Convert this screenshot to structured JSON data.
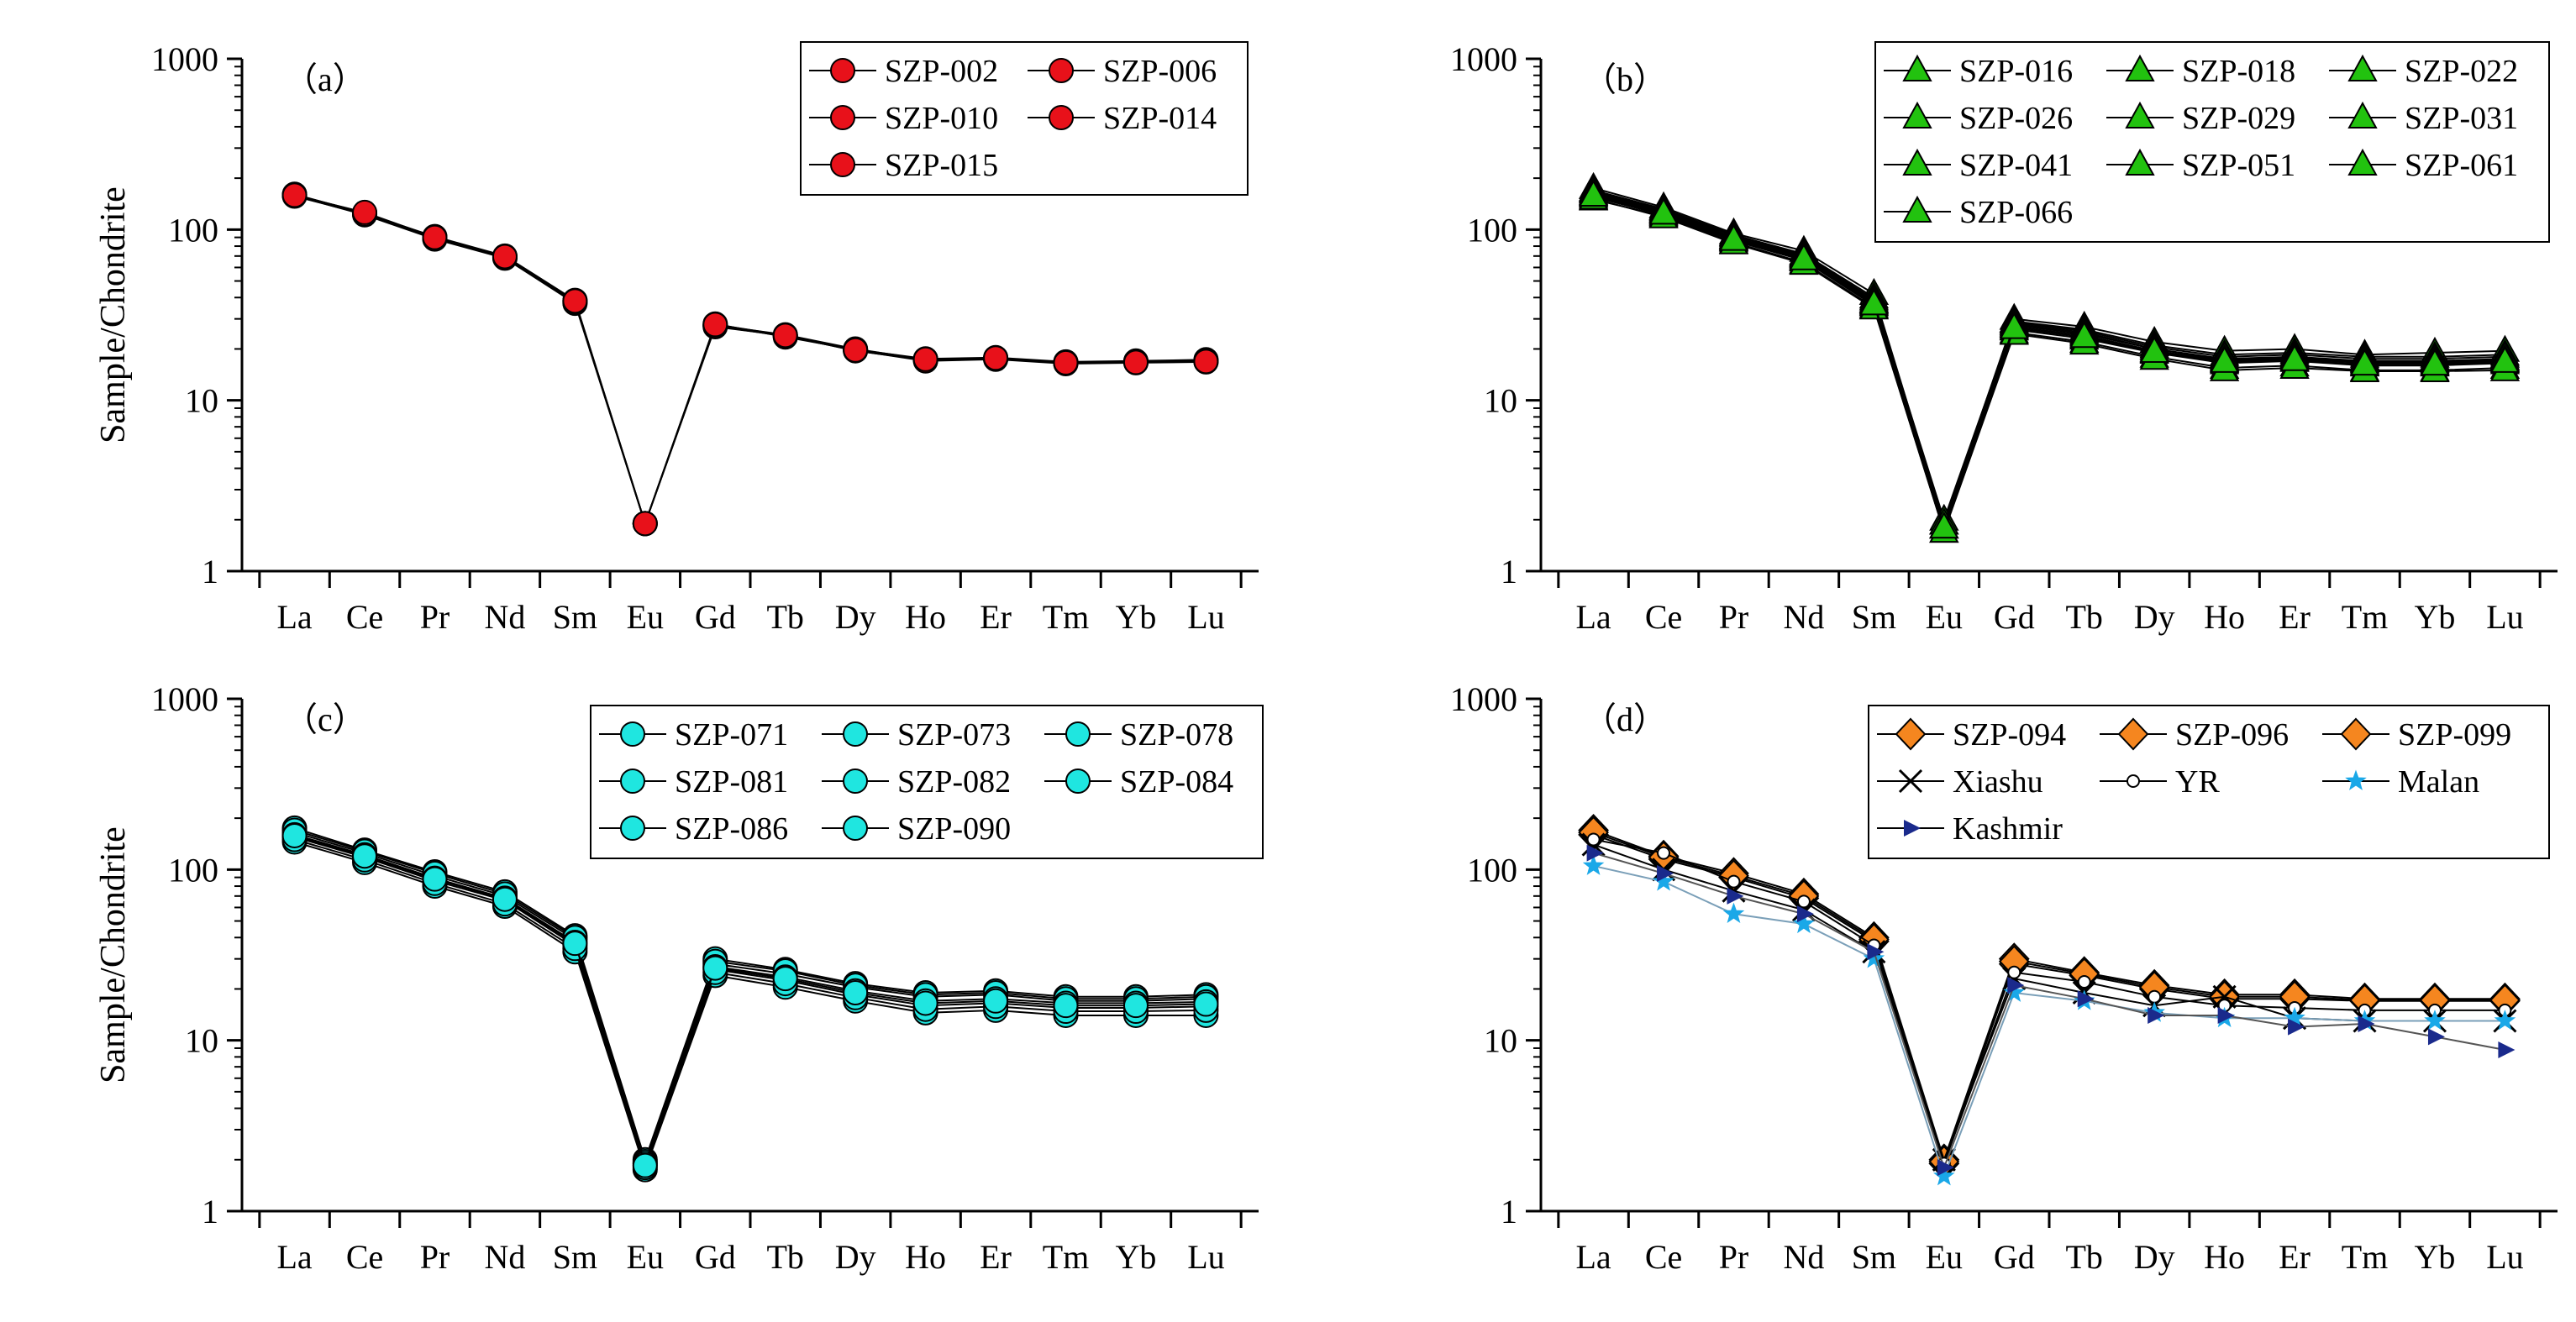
{
  "figure": {
    "ylabel": "Sample/Chondrite",
    "categories": [
      "La",
      "Ce",
      "Pr",
      "Nd",
      "Sm",
      "Eu",
      "Gd",
      "Tb",
      "Dy",
      "Ho",
      "Er",
      "Tm",
      "Yb",
      "Lu"
    ],
    "ylim": [
      1,
      1000
    ],
    "yticks": [
      "1",
      "10",
      "100",
      "1000"
    ]
  },
  "chart_data": [
    {
      "type": "line",
      "panel_label": "（a）",
      "scale": "log",
      "xlabel": "",
      "ylabel": "Sample/Chondrite",
      "ylim": [
        1,
        1000
      ],
      "categories": [
        "La",
        "Ce",
        "Pr",
        "Nd",
        "Sm",
        "Eu",
        "Gd",
        "Tb",
        "Dy",
        "Ho",
        "Er",
        "Tm",
        "Yb",
        "Lu"
      ],
      "legend_columns": 2,
      "series": [
        {
          "name": "SZP-002",
          "marker": "circle",
          "color": "#e8111a",
          "values": [
            160,
            125,
            90,
            69,
            38,
            1.9,
            27,
            24,
            19.5,
            17.2,
            17.5,
            16.5,
            16.8,
            17.0
          ]
        },
        {
          "name": "SZP-006",
          "marker": "circle",
          "color": "#e8111a",
          "values": [
            158,
            122,
            88,
            68,
            37,
            1.9,
            28,
            23.5,
            19.8,
            17.5,
            17.8,
            16.8,
            17.0,
            17.3
          ]
        },
        {
          "name": "SZP-010",
          "marker": "circle",
          "color": "#e8111a",
          "values": [
            161,
            124,
            91,
            70,
            38.5,
            1.9,
            27.5,
            24.2,
            20.0,
            17.3,
            17.6,
            16.7,
            16.9,
            17.1
          ]
        },
        {
          "name": "SZP-014",
          "marker": "circle",
          "color": "#e8111a",
          "values": [
            157,
            123,
            89,
            68.5,
            37.5,
            1.9,
            27.2,
            23.8,
            19.6,
            17.0,
            17.4,
            16.4,
            16.6,
            16.8
          ]
        },
        {
          "name": "SZP-015",
          "marker": "circle",
          "color": "#e8111a",
          "values": [
            159,
            126,
            90,
            69.5,
            38.2,
            1.9,
            27.8,
            24.0,
            19.7,
            17.4,
            17.7,
            16.6,
            16.7,
            16.9
          ]
        }
      ]
    },
    {
      "type": "line",
      "panel_label": "（b）",
      "scale": "log",
      "xlabel": "",
      "ylabel": "",
      "ylim": [
        1,
        1000
      ],
      "categories": [
        "La",
        "Ce",
        "Pr",
        "Nd",
        "Sm",
        "Eu",
        "Gd",
        "Tb",
        "Dy",
        "Ho",
        "Er",
        "Tm",
        "Yb",
        "Lu"
      ],
      "legend_columns": 3,
      "series": [
        {
          "name": "SZP-016",
          "marker": "triangle",
          "color": "#22c20f",
          "values": [
            175,
            135,
            95,
            75,
            42,
            1.9,
            30,
            27,
            22,
            19.5,
            20,
            18.5,
            19,
            19.5
          ]
        },
        {
          "name": "SZP-018",
          "marker": "triangle",
          "color": "#22c20f",
          "values": [
            150,
            120,
            84,
            64,
            35,
            1.7,
            25,
            22,
            18,
            15.5,
            16,
            15,
            15,
            15.5
          ]
        },
        {
          "name": "SZP-022",
          "marker": "triangle",
          "color": "#22c20f",
          "values": [
            165,
            128,
            90,
            70,
            38,
            1.8,
            28,
            25,
            20,
            17.5,
            18,
            17,
            17,
            17.5
          ]
        },
        {
          "name": "SZP-026",
          "marker": "triangle",
          "color": "#22c20f",
          "values": [
            160,
            125,
            88,
            68,
            37,
            1.9,
            27,
            24,
            19.5,
            17,
            17.5,
            16.5,
            16.5,
            17
          ]
        },
        {
          "name": "SZP-029",
          "marker": "triangle",
          "color": "#22c20f",
          "values": [
            170,
            132,
            93,
            72,
            40,
            2.0,
            29,
            26,
            21,
            18.5,
            19,
            18,
            18,
            18.5
          ]
        },
        {
          "name": "SZP-031",
          "marker": "triangle",
          "color": "#22c20f",
          "values": [
            155,
            122,
            86,
            66,
            36,
            1.8,
            26,
            23,
            19,
            16.5,
            17,
            16,
            16,
            16.5
          ]
        },
        {
          "name": "SZP-041",
          "marker": "triangle",
          "color": "#22c20f",
          "values": [
            168,
            130,
            92,
            71,
            39,
            1.9,
            28.5,
            25.5,
            20.5,
            18,
            18.5,
            17.5,
            17.5,
            18
          ]
        },
        {
          "name": "SZP-051",
          "marker": "triangle",
          "color": "#22c20f",
          "values": [
            152,
            118,
            83,
            63,
            34.5,
            1.7,
            24.5,
            21.5,
            17.5,
            15,
            15.5,
            14.8,
            14.8,
            15
          ]
        },
        {
          "name": "SZP-061",
          "marker": "triangle",
          "color": "#22c20f",
          "values": [
            162,
            127,
            89,
            69,
            37.5,
            1.8,
            27.5,
            24.5,
            20,
            17.2,
            17.8,
            16.8,
            16.8,
            17.2
          ]
        },
        {
          "name": "SZP-066",
          "marker": "triangle",
          "color": "#22c20f",
          "values": [
            158,
            124,
            87,
            67,
            36.5,
            1.8,
            26.5,
            23.5,
            19.2,
            16.8,
            17.2,
            16.2,
            16.2,
            16.8
          ]
        }
      ]
    },
    {
      "type": "line",
      "panel_label": "（c）",
      "scale": "log",
      "xlabel": "",
      "ylabel": "Sample/Chondrite",
      "ylim": [
        1,
        1000
      ],
      "categories": [
        "La",
        "Ce",
        "Pr",
        "Nd",
        "Sm",
        "Eu",
        "Gd",
        "Tb",
        "Dy",
        "Ho",
        "Er",
        "Tm",
        "Yb",
        "Lu"
      ],
      "legend_columns": 3,
      "series": [
        {
          "name": "SZP-071",
          "marker": "circle",
          "color": "#1fe6e0",
          "values": [
            175,
            130,
            97,
            74,
            41,
            2.0,
            30,
            26,
            21.5,
            19,
            19.5,
            18,
            18,
            18.5
          ]
        },
        {
          "name": "SZP-073",
          "marker": "circle",
          "color": "#1fe6e0",
          "values": [
            145,
            110,
            80,
            61,
            33,
            1.75,
            24,
            20.5,
            17,
            14.5,
            15,
            14,
            14,
            14
          ]
        },
        {
          "name": "SZP-078",
          "marker": "circle",
          "color": "#1fe6e0",
          "values": [
            165,
            125,
            92,
            70,
            39,
            1.9,
            28,
            24.5,
            20.5,
            18,
            18.5,
            17,
            17,
            17.5
          ]
        },
        {
          "name": "SZP-081",
          "marker": "circle",
          "color": "#1fe6e0",
          "values": [
            155,
            118,
            86,
            66,
            36,
            1.85,
            26,
            22.5,
            18.5,
            16,
            16.5,
            15.5,
            15.5,
            15.8
          ]
        },
        {
          "name": "SZP-082",
          "marker": "circle",
          "color": "#1fe6e0",
          "values": [
            170,
            128,
            95,
            72,
            40,
            1.95,
            29,
            25.5,
            21,
            18.5,
            19,
            17.5,
            17.5,
            18
          ]
        },
        {
          "name": "SZP-084",
          "marker": "circle",
          "color": "#1fe6e0",
          "values": [
            150,
            114,
            83,
            63,
            34.5,
            1.8,
            25,
            21.5,
            17.8,
            15.2,
            15.8,
            14.8,
            14.8,
            15
          ]
        },
        {
          "name": "SZP-086",
          "marker": "circle",
          "color": "#1fe6e0",
          "values": [
            160,
            122,
            89,
            68,
            37.5,
            1.9,
            27,
            23.5,
            19.5,
            17,
            17.5,
            16.5,
            16.5,
            16.8
          ]
        },
        {
          "name": "SZP-090",
          "marker": "circle",
          "color": "#1fe6e0",
          "values": [
            158,
            120,
            88,
            67,
            37,
            1.85,
            26.5,
            23,
            19,
            16.5,
            17,
            16,
            16,
            16.3
          ]
        }
      ]
    },
    {
      "type": "line",
      "panel_label": "（d）",
      "scale": "log",
      "xlabel": "",
      "ylabel": "",
      "ylim": [
        1,
        1000
      ],
      "categories": [
        "La",
        "Ce",
        "Pr",
        "Nd",
        "Sm",
        "Eu",
        "Gd",
        "Tb",
        "Dy",
        "Ho",
        "Er",
        "Tm",
        "Yb",
        "Lu"
      ],
      "legend_columns": 3,
      "series": [
        {
          "name": "SZP-094",
          "marker": "diamond",
          "color": "#f5861f",
          "values": [
            170,
            120,
            95,
            72,
            40,
            2.0,
            30,
            25,
            21,
            18.5,
            18.5,
            17.5,
            17.5,
            17.5
          ]
        },
        {
          "name": "SZP-096",
          "marker": "diamond",
          "color": "#f5861f",
          "values": [
            160,
            115,
            90,
            68,
            38,
            1.9,
            28,
            24,
            20,
            17.5,
            17.5,
            17,
            17,
            17
          ]
        },
        {
          "name": "SZP-099",
          "marker": "diamond",
          "color": "#f5861f",
          "values": [
            165,
            118,
            92,
            70,
            39,
            1.95,
            29,
            24.5,
            20.5,
            18,
            18,
            17.2,
            17.2,
            17.2
          ]
        },
        {
          "name": "Xiashu",
          "marker": "x",
          "color": "#000000",
          "values": [
            140,
            100,
            75,
            58,
            33,
            2.0,
            23,
            19,
            16,
            18,
            13.5,
            13,
            13,
            13
          ]
        },
        {
          "name": "YR",
          "marker": "open-circle",
          "color": "#000000",
          "values": [
            150,
            125,
            85,
            65,
            36,
            1.9,
            25,
            22,
            18,
            16,
            15.5,
            15,
            15,
            15
          ]
        },
        {
          "name": "Malan",
          "marker": "star",
          "color": "#1aa8e8",
          "values": [
            105,
            85,
            55,
            48,
            30,
            1.6,
            19,
            17,
            14.5,
            13.5,
            13.5,
            13,
            13,
            13
          ]
        },
        {
          "name": "Kashmir",
          "marker": "tri-right",
          "color": "#1a2a8c",
          "values": [
            125,
            95,
            70,
            55,
            33,
            1.8,
            21,
            17.5,
            14,
            14,
            12,
            12.5,
            10.5,
            8.8
          ]
        }
      ]
    }
  ]
}
